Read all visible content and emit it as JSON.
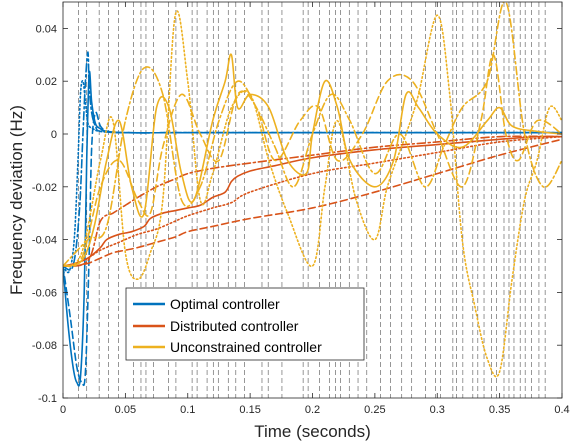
{
  "chart_data": {
    "type": "line",
    "title": "",
    "xlabel": "Time (seconds)",
    "ylabel": "Frequency deviation (Hz)",
    "xlim": [
      0,
      0.4
    ],
    "ylim": [
      -0.1,
      0.05
    ],
    "x_ticks": [
      0,
      0.05,
      0.1,
      0.15,
      0.2,
      0.25,
      0.3,
      0.35,
      0.4
    ],
    "x_tick_labels": [
      "0",
      "0.05",
      "0.1",
      "0.15",
      "0.2",
      "0.25",
      "0.3",
      "0.35",
      "0.4"
    ],
    "y_ticks": [
      -0.1,
      -0.08,
      -0.06,
      -0.04,
      -0.02,
      0,
      0.02,
      0.04
    ],
    "y_tick_labels": [
      "-0.1",
      "-0.08",
      "-0.06",
      "-0.04",
      "-0.02",
      "0",
      "0.02",
      "0.04"
    ],
    "grid": "dashed vertical event lines",
    "vertical_event_lines": [
      0.0125,
      0.019,
      0.029,
      0.0365,
      0.0445,
      0.0565,
      0.0625,
      0.0665,
      0.0725,
      0.0845,
      0.0905,
      0.1035,
      0.1075,
      0.1155,
      0.1205,
      0.1245,
      0.1325,
      0.1385,
      0.1455,
      0.1595,
      0.1645,
      0.1755,
      0.1925,
      0.1965,
      0.2055,
      0.2135,
      0.2185,
      0.2225,
      0.2295,
      0.2365,
      0.2435,
      0.2545,
      0.2625,
      0.2715,
      0.2795,
      0.2905,
      0.2985,
      0.3025,
      0.3125,
      0.3155,
      0.3205,
      0.3285,
      0.3325,
      0.3375,
      0.3435,
      0.3475,
      0.3535,
      0.3575,
      0.3615,
      0.3665,
      0.3705,
      0.3755,
      0.3815,
      0.3865
    ],
    "legend": {
      "placement": "bottom-left",
      "entries": [
        "Optimal controller",
        "Distributed controller",
        "Unconstrained controller"
      ]
    },
    "series": [
      {
        "name": "Optimal controller",
        "color": "#0072BD",
        "dash": "solid",
        "x": [
          0,
          0.004,
          0.008,
          0.011,
          0.014,
          0.017,
          0.019,
          0.021,
          0.023,
          0.026,
          0.03,
          0.035,
          0.05,
          0.1,
          0.2,
          0.3,
          0.4
        ],
        "y": [
          -0.05,
          -0.072,
          -0.088,
          -0.094,
          -0.092,
          -0.06,
          -0.01,
          0.023,
          0.012,
          0.004,
          0.002,
          0.001,
          0.0005,
          0.0005,
          0.0005,
          0.0005,
          0.0005
        ]
      },
      {
        "color": "#0072BD",
        "dash": "dashed",
        "x": [
          0,
          0.006,
          0.011,
          0.015,
          0.018,
          0.021,
          0.023,
          0.026,
          0.03,
          0.036,
          0.05,
          0.1,
          0.2,
          0.3,
          0.4
        ],
        "y": [
          -0.05,
          -0.07,
          -0.088,
          -0.094,
          -0.09,
          -0.045,
          -0.005,
          0.008,
          0.003,
          0.001,
          0.0005,
          0.0005,
          0.0005,
          0.0005,
          0.0005
        ]
      },
      {
        "color": "#0072BD",
        "dash": "dotted",
        "x": [
          0,
          0.005,
          0.009,
          0.012,
          0.014,
          0.016,
          0.018,
          0.02,
          0.024,
          0.03,
          0.05,
          0.1,
          0.2,
          0.3,
          0.4
        ],
        "y": [
          -0.05,
          -0.052,
          -0.04,
          -0.01,
          0.015,
          0.02,
          0.012,
          0.004,
          0.002,
          0.001,
          0.0005,
          0.0005,
          0.0005,
          0.0005,
          0.0005
        ]
      },
      {
        "color": "#0072BD",
        "dash": "dashdot",
        "x": [
          0,
          0.008,
          0.013,
          0.016,
          0.018,
          0.02,
          0.021,
          0.023,
          0.026,
          0.03,
          0.05,
          0.1,
          0.2,
          0.3,
          0.4
        ],
        "y": [
          -0.05,
          -0.05,
          -0.03,
          0.0,
          0.02,
          0.031,
          0.018,
          0.008,
          0.003,
          0.001,
          0.0005,
          0.0005,
          0.0005,
          0.0005,
          0.0005
        ]
      },
      {
        "name": "Distributed controller",
        "color": "#D95319",
        "dash": "solid",
        "x": [
          0,
          0.01,
          0.02,
          0.03,
          0.035,
          0.045,
          0.055,
          0.065,
          0.07,
          0.08,
          0.09,
          0.1,
          0.11,
          0.12,
          0.13,
          0.135,
          0.14,
          0.15,
          0.17,
          0.2,
          0.25,
          0.3,
          0.35,
          0.38,
          0.4
        ],
        "y": [
          -0.05,
          -0.049,
          -0.047,
          -0.043,
          -0.04,
          -0.038,
          -0.037,
          -0.035,
          -0.032,
          -0.03,
          -0.029,
          -0.028,
          -0.027,
          -0.024,
          -0.022,
          -0.018,
          -0.016,
          -0.014,
          -0.012,
          -0.009,
          -0.006,
          -0.004,
          -0.002,
          -0.001,
          -0.001
        ]
      },
      {
        "color": "#D95319",
        "dash": "dashed",
        "x": [
          0,
          0.01,
          0.02,
          0.03,
          0.04,
          0.05,
          0.06,
          0.075,
          0.09,
          0.1,
          0.12,
          0.15,
          0.2,
          0.25,
          0.3,
          0.35,
          0.4
        ],
        "y": [
          -0.05,
          -0.05,
          -0.049,
          -0.047,
          -0.045,
          -0.044,
          -0.043,
          -0.041,
          -0.039,
          -0.037,
          -0.035,
          -0.032,
          -0.028,
          -0.022,
          -0.015,
          -0.008,
          -0.002
        ]
      },
      {
        "color": "#D95319",
        "dash": "dotted",
        "x": [
          0,
          0.01,
          0.02,
          0.03,
          0.045,
          0.06,
          0.075,
          0.09,
          0.1,
          0.12,
          0.135,
          0.15,
          0.2,
          0.25,
          0.3,
          0.35,
          0.4
        ],
        "y": [
          -0.05,
          -0.049,
          -0.047,
          -0.044,
          -0.041,
          -0.038,
          -0.036,
          -0.033,
          -0.031,
          -0.028,
          -0.026,
          -0.022,
          -0.015,
          -0.011,
          -0.007,
          -0.003,
          -0.001
        ]
      },
      {
        "color": "#D95319",
        "dash": "dashdot",
        "x": [
          0,
          0.02,
          0.03,
          0.04,
          0.05,
          0.06,
          0.075,
          0.09,
          0.1,
          0.12,
          0.15,
          0.2,
          0.25,
          0.3,
          0.35,
          0.4
        ],
        "y": [
          -0.05,
          -0.048,
          -0.033,
          -0.03,
          -0.027,
          -0.024,
          -0.02,
          -0.017,
          -0.015,
          -0.013,
          -0.011,
          -0.008,
          -0.005,
          -0.003,
          -0.001,
          -0.001
        ]
      },
      {
        "name": "Unconstrained controller",
        "color": "#EDB120",
        "dash": "solid",
        "x": [
          0,
          0.015,
          0.025,
          0.035,
          0.045,
          0.055,
          0.065,
          0.075,
          0.085,
          0.095,
          0.105,
          0.12,
          0.13,
          0.135,
          0.14,
          0.15,
          0.165,
          0.18,
          0.195,
          0.2,
          0.21,
          0.22,
          0.23,
          0.25,
          0.265,
          0.275,
          0.285,
          0.3,
          0.32,
          0.34,
          0.35,
          0.36,
          0.38,
          0.4
        ],
        "y": [
          -0.05,
          -0.048,
          -0.035,
          -0.01,
          0.005,
          -0.02,
          -0.03,
          0.01,
          0.01,
          -0.015,
          -0.025,
          0.005,
          0.02,
          0.03,
          0.01,
          0.015,
          0.01,
          -0.01,
          -0.015,
          0.0,
          0.02,
          0.01,
          -0.01,
          -0.02,
          -0.01,
          0.015,
          0.01,
          0.0,
          -0.005,
          0.005,
          0.01,
          0.003,
          0.001,
          0.0
        ]
      },
      {
        "color": "#EDB120",
        "dash": "dashed",
        "x": [
          0,
          0.015,
          0.03,
          0.045,
          0.06,
          0.07,
          0.08,
          0.095,
          0.11,
          0.125,
          0.14,
          0.155,
          0.17,
          0.19,
          0.205,
          0.22,
          0.24,
          0.26,
          0.28,
          0.3,
          0.32,
          0.335,
          0.345,
          0.355,
          0.365,
          0.38,
          0.4
        ],
        "y": [
          -0.05,
          -0.047,
          -0.02,
          -0.01,
          -0.025,
          -0.03,
          -0.005,
          0.015,
          0.0,
          -0.01,
          0.015,
          0.01,
          -0.01,
          0.005,
          0.01,
          -0.01,
          0.0,
          0.02,
          0.02,
          0.0,
          -0.02,
          0.005,
          0.03,
          0.0,
          -0.01,
          0.005,
          0.0
        ]
      },
      {
        "color": "#EDB120",
        "dash": "dotted",
        "x": [
          0,
          0.015,
          0.03,
          0.04,
          0.05,
          0.06,
          0.07,
          0.08,
          0.09,
          0.1,
          0.11,
          0.12,
          0.135,
          0.15,
          0.165,
          0.18,
          0.2,
          0.21,
          0.22,
          0.235,
          0.25,
          0.26,
          0.275,
          0.285,
          0.3,
          0.31,
          0.32,
          0.33,
          0.34,
          0.35,
          0.36,
          0.37,
          0.38,
          0.39,
          0.4
        ],
        "y": [
          -0.05,
          -0.045,
          -0.01,
          0.005,
          -0.045,
          -0.055,
          -0.045,
          -0.025,
          0.045,
          0.02,
          -0.025,
          -0.015,
          0.01,
          0.015,
          -0.01,
          -0.03,
          -0.05,
          -0.02,
          0.005,
          -0.025,
          -0.04,
          -0.02,
          0.0,
          0.015,
          0.045,
          0.015,
          -0.04,
          -0.065,
          -0.085,
          -0.09,
          -0.055,
          -0.025,
          -0.01,
          0.01,
          0.005
        ]
      },
      {
        "color": "#EDB120",
        "dash": "dashdot",
        "x": [
          0,
          0.02,
          0.035,
          0.05,
          0.065,
          0.08,
          0.095,
          0.11,
          0.125,
          0.14,
          0.155,
          0.17,
          0.185,
          0.2,
          0.215,
          0.23,
          0.25,
          0.27,
          0.29,
          0.305,
          0.32,
          0.34,
          0.355,
          0.37,
          0.385,
          0.4
        ],
        "y": [
          -0.05,
          -0.04,
          -0.035,
          0.005,
          0.025,
          0.015,
          -0.025,
          -0.02,
          0.005,
          0.02,
          0.01,
          -0.005,
          -0.02,
          0.0,
          0.015,
          0.005,
          -0.015,
          0.0,
          -0.02,
          -0.005,
          0.01,
          0.02,
          0.05,
          0.0,
          -0.02,
          -0.01
        ]
      }
    ]
  }
}
